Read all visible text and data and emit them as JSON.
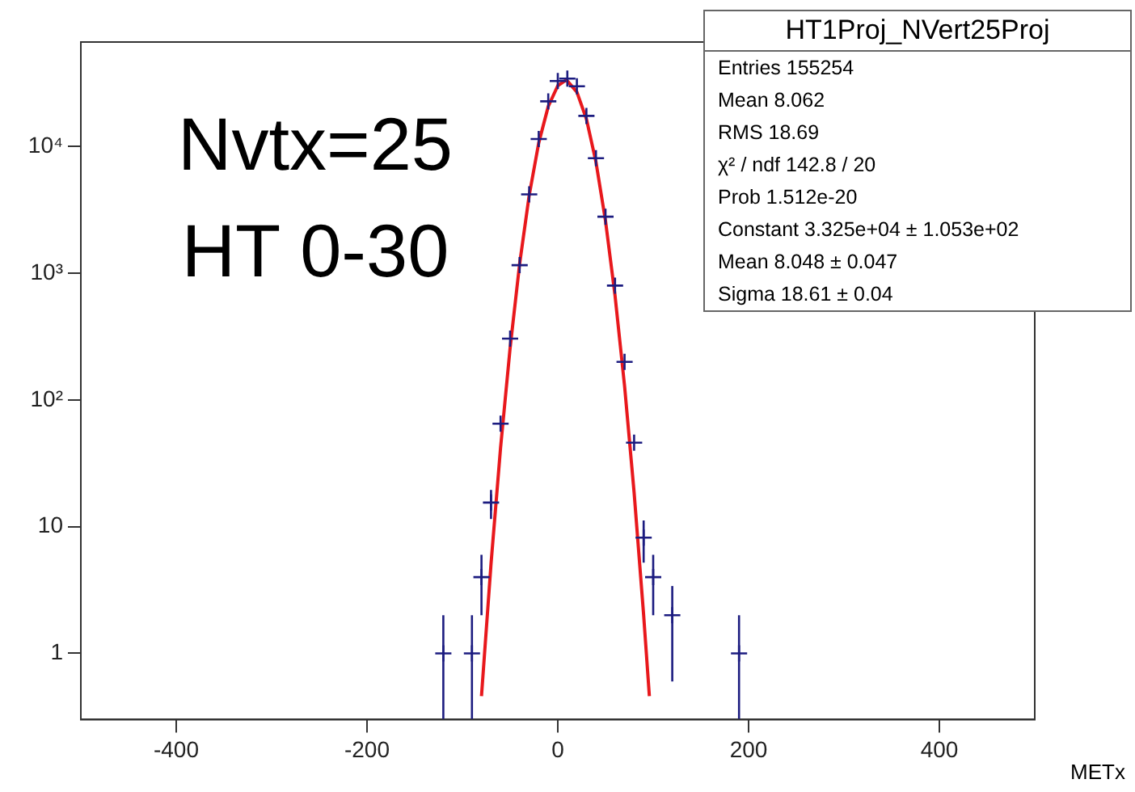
{
  "chart_data": {
    "type": "scatter",
    "xlabel": "METx",
    "annotations": [
      "Nvtx=25",
      "HT 0-30",
      "HT1Proj_NVert25Proj",
      "Entries 155254",
      "Mean 8.062",
      "RMS 18.69",
      "χ² / ndf 142.8 / 20",
      "Prob 1.512e-20",
      "Constant 3.325e+04 ± 1.053e+02",
      "Mean 8.048 ± 0.047",
      "Sigma 18.61 ± 0.04"
    ],
    "xlim": [
      -500,
      500
    ],
    "xticks": [
      -400,
      -200,
      0,
      200,
      400
    ],
    "ylim": [
      0.3,
      67000
    ],
    "yticks": [
      1,
      10,
      {
        "value": 100,
        "label": "10²"
      },
      {
        "value": 1000,
        "label": "10³"
      },
      {
        "value": 10000,
        "label": "10⁴"
      }
    ],
    "log": "y",
    "grid": false,
    "legend": false,
    "series": [
      {
        "color": "#1c1c80",
        "marker": "cross",
        "x": [
          -120,
          -90,
          -80,
          -70,
          -60,
          -50,
          -40,
          -30,
          -20,
          -10,
          0,
          10,
          20,
          30,
          40,
          50,
          60,
          70,
          80,
          90,
          100,
          120,
          190
        ],
        "values": [
          1,
          1,
          4,
          15.5,
          65,
          305,
          1160,
          4200,
          11500,
          22800,
          33000,
          34500,
          30000,
          17500,
          8100,
          2800,
          800,
          200,
          46,
          8.2,
          4,
          2,
          1
        ],
        "errors": [
          [
            0.3,
            2
          ],
          [
            0.3,
            2
          ],
          2,
          4,
          null,
          null,
          null,
          null,
          null,
          null,
          null,
          null,
          null,
          null,
          null,
          null,
          null,
          null,
          null,
          3,
          2,
          1.4,
          [
            0.3,
            2
          ]
        ]
      },
      {
        "type": "line",
        "color": "#e8181c",
        "marker": "none",
        "x": [
          -80,
          -70,
          -60,
          -50,
          -40,
          -30,
          -20,
          -10,
          0,
          8,
          10,
          20,
          30,
          40,
          50,
          60,
          70,
          80,
          90,
          96
        ],
        "values": [
          0.46,
          5.1,
          42,
          257,
          1190,
          4120,
          10700,
          20800,
          30300,
          33250,
          33060,
          27000,
          16530,
          7570,
          2600,
          667,
          129,
          18.6,
          2,
          0.46
        ]
      }
    ]
  }
}
